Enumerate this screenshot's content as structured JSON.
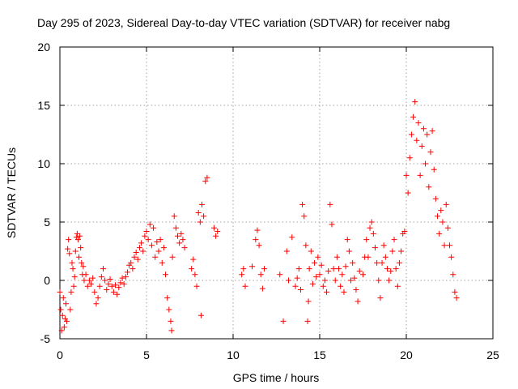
{
  "chart_data": {
    "type": "scatter",
    "title": "Day 295 of 2023, Sidereal Day-to-day VTEC variation (SDTVAR) for receiver nabg",
    "xlabel": "GPS time / hours",
    "ylabel": "SDTVAR / TECUs",
    "xlim": [
      0,
      25
    ],
    "ylim": [
      -5,
      20
    ],
    "x_ticks": [
      0,
      5,
      10,
      15,
      20,
      25
    ],
    "y_ticks": [
      -5,
      0,
      5,
      10,
      15,
      20
    ],
    "x_tick_labels": [
      "0",
      "5",
      "10",
      "15",
      "20",
      "25"
    ],
    "y_tick_labels": [
      "-5",
      "0",
      "5",
      "10",
      "15",
      "20"
    ],
    "grid": true,
    "marker": "plus",
    "marker_color": "#ff0000",
    "series": [
      {
        "name": "SDTVAR",
        "points": [
          [
            0.0,
            -1.0
          ],
          [
            0.05,
            -2.5
          ],
          [
            0.1,
            -4.3
          ],
          [
            0.15,
            -3.0
          ],
          [
            0.2,
            -1.5
          ],
          [
            0.25,
            -4.0
          ],
          [
            0.3,
            -3.3
          ],
          [
            0.35,
            -2.0
          ],
          [
            0.4,
            -3.5
          ],
          [
            0.45,
            2.7
          ],
          [
            0.5,
            3.5
          ],
          [
            0.55,
            2.3
          ],
          [
            0.6,
            -2.5
          ],
          [
            0.65,
            -1.0
          ],
          [
            0.7,
            1.5
          ],
          [
            0.75,
            1.0
          ],
          [
            0.8,
            -0.5
          ],
          [
            0.85,
            0.3
          ],
          [
            0.9,
            2.5
          ],
          [
            0.95,
            3.7
          ],
          [
            1.0,
            4.0
          ],
          [
            1.05,
            3.5
          ],
          [
            1.1,
            2.0
          ],
          [
            1.15,
            3.8
          ],
          [
            1.2,
            2.8
          ],
          [
            1.25,
            1.5
          ],
          [
            1.3,
            0.5
          ],
          [
            1.35,
            1.2
          ],
          [
            1.4,
            0.0
          ],
          [
            1.5,
            0.5
          ],
          [
            1.6,
            -0.5
          ],
          [
            1.7,
            0.0
          ],
          [
            1.8,
            -0.3
          ],
          [
            1.9,
            0.2
          ],
          [
            2.0,
            -1.0
          ],
          [
            2.1,
            -2.0
          ],
          [
            2.2,
            -1.5
          ],
          [
            2.3,
            -0.5
          ],
          [
            2.4,
            0.3
          ],
          [
            2.5,
            1.0
          ],
          [
            2.6,
            0.0
          ],
          [
            2.7,
            -0.8
          ],
          [
            2.8,
            -0.3
          ],
          [
            2.9,
            0.1
          ],
          [
            3.0,
            -0.5
          ],
          [
            3.1,
            -1.0
          ],
          [
            3.2,
            -0.4
          ],
          [
            3.3,
            -1.2
          ],
          [
            3.4,
            -0.6
          ],
          [
            3.5,
            -0.2
          ],
          [
            3.6,
            0.2
          ],
          [
            3.7,
            -0.3
          ],
          [
            3.8,
            0.3
          ],
          [
            3.9,
            0.7
          ],
          [
            4.0,
            1.3
          ],
          [
            4.1,
            1.5
          ],
          [
            4.2,
            1.0
          ],
          [
            4.3,
            2.0
          ],
          [
            4.4,
            2.4
          ],
          [
            4.5,
            1.8
          ],
          [
            4.6,
            2.8
          ],
          [
            4.7,
            3.2
          ],
          [
            4.8,
            2.5
          ],
          [
            4.9,
            3.8
          ],
          [
            5.0,
            4.2
          ],
          [
            5.1,
            3.5
          ],
          [
            5.2,
            4.8
          ],
          [
            5.3,
            3.0
          ],
          [
            5.4,
            4.5
          ],
          [
            5.5,
            2.0
          ],
          [
            5.6,
            3.3
          ],
          [
            5.7,
            2.5
          ],
          [
            5.8,
            3.5
          ],
          [
            5.9,
            1.5
          ],
          [
            6.0,
            2.8
          ],
          [
            6.1,
            0.5
          ],
          [
            6.2,
            -1.5
          ],
          [
            6.3,
            -2.5
          ],
          [
            6.4,
            -3.5
          ],
          [
            6.45,
            -4.3
          ],
          [
            6.5,
            2.0
          ],
          [
            6.6,
            5.5
          ],
          [
            6.7,
            4.5
          ],
          [
            6.8,
            3.8
          ],
          [
            6.9,
            3.2
          ],
          [
            7.0,
            4.0
          ],
          [
            7.1,
            3.5
          ],
          [
            7.2,
            2.8
          ],
          [
            7.6,
            1.0
          ],
          [
            7.7,
            1.8
          ],
          [
            7.8,
            0.5
          ],
          [
            7.9,
            -0.5
          ],
          [
            8.0,
            5.8
          ],
          [
            8.1,
            5.0
          ],
          [
            8.15,
            -3.0
          ],
          [
            8.2,
            6.5
          ],
          [
            8.3,
            5.5
          ],
          [
            8.4,
            8.5
          ],
          [
            8.5,
            8.8
          ],
          [
            8.9,
            4.5
          ],
          [
            9.0,
            3.8
          ],
          [
            9.1,
            4.2
          ],
          [
            10.5,
            0.5
          ],
          [
            10.6,
            1.0
          ],
          [
            10.7,
            -0.5
          ],
          [
            11.1,
            1.2
          ],
          [
            11.3,
            3.5
          ],
          [
            11.4,
            4.3
          ],
          [
            11.5,
            3.0
          ],
          [
            11.6,
            0.5
          ],
          [
            11.7,
            -0.7
          ],
          [
            11.8,
            1.0
          ],
          [
            12.7,
            0.5
          ],
          [
            12.9,
            -3.5
          ],
          [
            13.1,
            2.5
          ],
          [
            13.2,
            0.0
          ],
          [
            13.4,
            3.7
          ],
          [
            13.6,
            -0.5
          ],
          [
            13.7,
            0.2
          ],
          [
            13.8,
            1.0
          ],
          [
            13.9,
            -0.8
          ],
          [
            14.0,
            6.5
          ],
          [
            14.1,
            5.5
          ],
          [
            14.2,
            3.0
          ],
          [
            14.3,
            -3.5
          ],
          [
            14.35,
            -1.8
          ],
          [
            14.4,
            1.0
          ],
          [
            14.5,
            2.5
          ],
          [
            14.6,
            -0.3
          ],
          [
            14.7,
            1.5
          ],
          [
            14.8,
            0.3
          ],
          [
            14.9,
            2.0
          ],
          [
            15.0,
            0.5
          ],
          [
            15.1,
            1.3
          ],
          [
            15.2,
            -0.5
          ],
          [
            15.3,
            0.0
          ],
          [
            15.4,
            -1.0
          ],
          [
            15.5,
            0.8
          ],
          [
            15.6,
            6.5
          ],
          [
            15.7,
            4.8
          ],
          [
            15.8,
            1.0
          ],
          [
            15.9,
            0.0
          ],
          [
            16.0,
            2.0
          ],
          [
            16.1,
            1.0
          ],
          [
            16.2,
            -0.5
          ],
          [
            16.3,
            0.5
          ],
          [
            16.4,
            -1.0
          ],
          [
            16.5,
            1.2
          ],
          [
            16.6,
            3.5
          ],
          [
            16.7,
            2.5
          ],
          [
            16.8,
            0.0
          ],
          [
            16.9,
            1.5
          ],
          [
            17.0,
            0.2
          ],
          [
            17.1,
            -0.8
          ],
          [
            17.2,
            -1.8
          ],
          [
            17.3,
            0.8
          ],
          [
            17.5,
            0.5
          ],
          [
            17.6,
            2.0
          ],
          [
            17.7,
            3.5
          ],
          [
            17.8,
            2.0
          ],
          [
            17.9,
            4.5
          ],
          [
            18.0,
            5.0
          ],
          [
            18.1,
            4.0
          ],
          [
            18.2,
            2.8
          ],
          [
            18.3,
            1.5
          ],
          [
            18.4,
            0.0
          ],
          [
            18.5,
            -1.5
          ],
          [
            18.6,
            1.5
          ],
          [
            18.7,
            3.0
          ],
          [
            18.8,
            2.0
          ],
          [
            18.9,
            1.0
          ],
          [
            19.0,
            0.0
          ],
          [
            19.1,
            0.8
          ],
          [
            19.2,
            2.5
          ],
          [
            19.3,
            3.5
          ],
          [
            19.4,
            1.0
          ],
          [
            19.5,
            -0.5
          ],
          [
            19.6,
            1.5
          ],
          [
            19.7,
            2.5
          ],
          [
            19.8,
            4.0
          ],
          [
            19.9,
            4.2
          ],
          [
            20.0,
            9.0
          ],
          [
            20.1,
            7.5
          ],
          [
            20.2,
            10.5
          ],
          [
            20.3,
            12.5
          ],
          [
            20.4,
            14.0
          ],
          [
            20.5,
            15.3
          ],
          [
            20.6,
            12.0
          ],
          [
            20.7,
            13.5
          ],
          [
            20.8,
            9.0
          ],
          [
            20.9,
            11.5
          ],
          [
            21.0,
            13.0
          ],
          [
            21.1,
            10.0
          ],
          [
            21.2,
            12.5
          ],
          [
            21.3,
            8.0
          ],
          [
            21.4,
            11.0
          ],
          [
            21.5,
            12.8
          ],
          [
            21.6,
            9.5
          ],
          [
            21.7,
            7.0
          ],
          [
            21.8,
            5.5
          ],
          [
            21.9,
            4.0
          ],
          [
            22.0,
            6.0
          ],
          [
            22.1,
            5.0
          ],
          [
            22.2,
            3.0
          ],
          [
            22.3,
            6.5
          ],
          [
            22.4,
            4.5
          ],
          [
            22.5,
            3.0
          ],
          [
            22.6,
            2.0
          ],
          [
            22.7,
            0.5
          ],
          [
            22.8,
            -1.0
          ],
          [
            22.9,
            -1.5
          ]
        ]
      }
    ]
  }
}
